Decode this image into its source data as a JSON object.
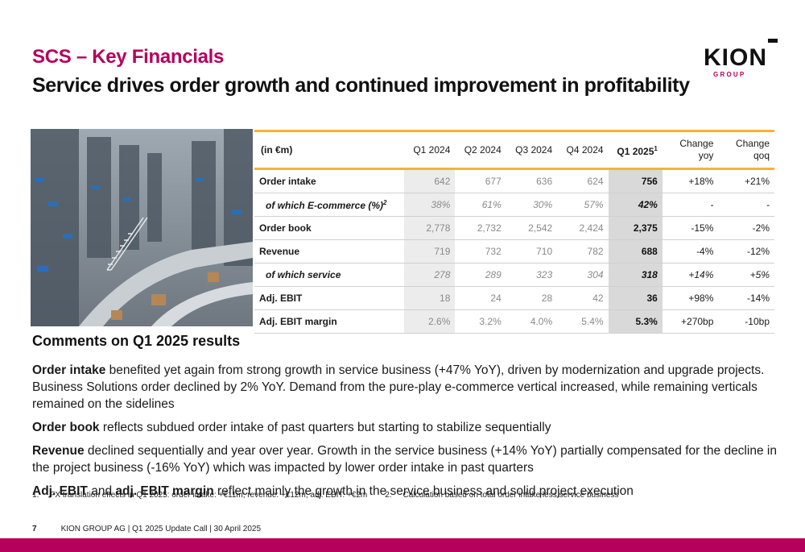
{
  "header": {
    "title": "SCS – Key Financials",
    "subtitle": "Service drives order growth and continued improvement in profitability"
  },
  "logo": {
    "text": "KION",
    "sub": "G R O U P"
  },
  "table": {
    "unit_label": "(in €m)",
    "col_q1_2024": "Q1 2024",
    "col_q2_2024": "Q2 2024",
    "col_q3_2024": "Q3 2024",
    "col_q4_2024": "Q4 2024",
    "col_q1_2025": "Q1 2025",
    "col_q1_2025_sup": "1",
    "col_yoy_1": "Change",
    "col_yoy_2": "yoy",
    "col_qoq_1": "Change",
    "col_qoq_2": "qoq",
    "rows": [
      {
        "label": "Order intake",
        "sup": "",
        "vals": [
          "642",
          "677",
          "636",
          "624",
          "756"
        ],
        "yoy": "+18%",
        "qoq": "+21%"
      },
      {
        "label": "of which E-commerce (%)",
        "sup": "2",
        "vals": [
          "38%",
          "61%",
          "30%",
          "57%",
          "42%"
        ],
        "yoy": "-",
        "qoq": "-"
      },
      {
        "label": "Order book",
        "sup": "",
        "vals": [
          "2,778",
          "2,732",
          "2,542",
          "2,424",
          "2,375"
        ],
        "yoy": "-15%",
        "qoq": "-2%"
      },
      {
        "label": "Revenue",
        "sup": "",
        "vals": [
          "719",
          "732",
          "710",
          "782",
          "688"
        ],
        "yoy": "-4%",
        "qoq": "-12%"
      },
      {
        "label": "of which service",
        "sup": "",
        "vals": [
          "278",
          "289",
          "323",
          "304",
          "318"
        ],
        "yoy": "+14%",
        "qoq": "+5%"
      },
      {
        "label": "Adj. EBIT",
        "sup": "",
        "vals": [
          "18",
          "24",
          "28",
          "42",
          "36"
        ],
        "yoy": "+98%",
        "qoq": "-14%"
      },
      {
        "label": "Adj. EBIT margin",
        "sup": "",
        "vals": [
          "2.6%",
          "3.2%",
          "4.0%",
          "5.4%",
          "5.3%"
        ],
        "yoy": "+270bp",
        "qoq": "-10bp"
      }
    ]
  },
  "comments": {
    "title": "Comments on Q1 2025 results",
    "p1_bold": "Order intake",
    "p1_text": " benefited yet again from strong growth in service business (+47% YoY), driven by modernization and upgrade projects. Business Solutions order declined by 2% YoY. Demand from the pure-play e-commerce vertical increased, while remaining verticals remained on the sidelines",
    "p2_bold": "Order book",
    "p2_text": " reflects subdued order intake of past quarters but starting to stabilize sequentially",
    "p3_bold": "Revenue",
    "p3_text": " declined sequentially and year over year. Growth in the service business (+14% YoY) partially compensated for the decline in the project business (-16% YoY) which was impacted by lower order intake in past quarters",
    "p4_bold1": "Adj. EBIT",
    "p4_mid": " and ",
    "p4_bold2": "adj. EBIT margin",
    "p4_text": " reflect mainly the growth in the service business and solid project execution"
  },
  "footnotes": {
    "f1": "1.     FX translation effects in Q1 2025: order intake: +€11m; revenue: +€12m; adj. EBIT: +€2m",
    "f2": "2.     Calculation based on total order intake less service business"
  },
  "footer": {
    "page": "7",
    "text": "KION GROUP AG | Q1 2025 Update Call | 30 April 2025"
  },
  "colors": {
    "brand": "#b5005c",
    "accent_rule": "#f5b335"
  }
}
